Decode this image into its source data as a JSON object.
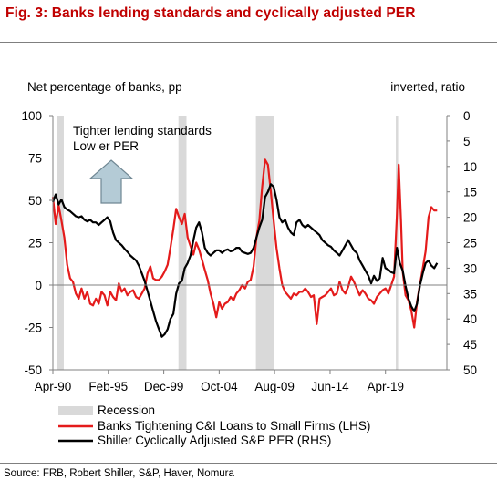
{
  "figure_title": "Fig. 3: Banks lending standards and cyclically adjusted PER",
  "source": "Source: FRB, Robert Shiller, S&P, Haver, Nomura",
  "colors": {
    "title": "#c00000",
    "recession": "#d9d9d9",
    "lending": "#e41b1b",
    "per": "#000000",
    "arrow_fill": "#b4cbd6",
    "arrow_stroke": "#6f8793"
  },
  "chart_data": {
    "type": "line",
    "ylabel_left": "Net percentage of banks, pp",
    "ylabel_right": "inverted, ratio",
    "annotation_lines": [
      "Tighter lending standards",
      "Low er PER"
    ],
    "ylim_left": [
      -50,
      100
    ],
    "ylim_right": [
      50,
      0
    ],
    "right_inverted": true,
    "left_ticks": [
      100,
      75,
      50,
      25,
      0,
      -25,
      -50
    ],
    "left_tick_labels": [
      "100",
      "75",
      "50",
      "25",
      "0",
      "-25",
      "-50"
    ],
    "right_ticks": [
      0,
      5,
      10,
      15,
      20,
      25,
      30,
      35,
      40,
      45,
      50
    ],
    "right_tick_labels": [
      "0",
      "5",
      "10",
      "15",
      "20",
      "25",
      "30",
      "35",
      "40",
      "45",
      "50"
    ],
    "xlim": [
      1990.25,
      2024.6
    ],
    "x_ticks": [
      1990.25,
      1995.08,
      1999.92,
      2004.75,
      2009.58,
      2014.42,
      2019.25
    ],
    "x_tick_labels": [
      "Apr-90",
      "Feb-95",
      "Dec-99",
      "Oct-04",
      "Aug-09",
      "Jun-14",
      "Apr-19"
    ],
    "legend": [
      {
        "key": "recession",
        "label": "Recession"
      },
      {
        "key": "lending",
        "label": "Banks Tightening C&I Loans to Small Firms (LHS)"
      },
      {
        "key": "per",
        "label": "Shiller Cyclically Adjusted S&P PER (RHS)"
      }
    ],
    "recessions": [
      [
        1990.6,
        1991.2
      ],
      [
        2001.2,
        2001.9
      ],
      [
        2007.95,
        2009.5
      ],
      [
        2020.15,
        2020.35
      ]
    ],
    "series": [
      {
        "name": "Banks Tightening C&I Loans to Small Firms (LHS)",
        "axis": "left",
        "points": [
          [
            1990.25,
            52
          ],
          [
            1990.5,
            36
          ],
          [
            1990.75,
            47
          ],
          [
            1991.0,
            38
          ],
          [
            1991.25,
            28
          ],
          [
            1991.5,
            12
          ],
          [
            1991.75,
            4
          ],
          [
            1992.0,
            2
          ],
          [
            1992.25,
            -5
          ],
          [
            1992.5,
            -8
          ],
          [
            1992.75,
            -2
          ],
          [
            1993.0,
            -8
          ],
          [
            1993.25,
            -4
          ],
          [
            1993.5,
            -11
          ],
          [
            1993.75,
            -12
          ],
          [
            1994.0,
            -8
          ],
          [
            1994.25,
            -11
          ],
          [
            1994.5,
            -4
          ],
          [
            1994.75,
            -6
          ],
          [
            1995.0,
            -12
          ],
          [
            1995.25,
            -4
          ],
          [
            1995.5,
            -7
          ],
          [
            1995.75,
            -9
          ],
          [
            1996.0,
            1
          ],
          [
            1996.25,
            -4
          ],
          [
            1996.5,
            -2
          ],
          [
            1996.75,
            -6
          ],
          [
            1997.0,
            -4
          ],
          [
            1997.25,
            -3
          ],
          [
            1997.5,
            -7
          ],
          [
            1997.75,
            -8
          ],
          [
            1998.0,
            -5
          ],
          [
            1998.25,
            -2
          ],
          [
            1998.5,
            7
          ],
          [
            1998.75,
            11
          ],
          [
            1999.0,
            4
          ],
          [
            1999.25,
            3
          ],
          [
            1999.5,
            3
          ],
          [
            1999.75,
            5
          ],
          [
            2000.0,
            8
          ],
          [
            2000.25,
            12
          ],
          [
            2000.5,
            22
          ],
          [
            2000.75,
            33
          ],
          [
            2001.0,
            45
          ],
          [
            2001.25,
            40
          ],
          [
            2001.5,
            36
          ],
          [
            2001.75,
            42
          ],
          [
            2002.0,
            28
          ],
          [
            2002.25,
            23
          ],
          [
            2002.5,
            18
          ],
          [
            2002.75,
            25
          ],
          [
            2003.0,
            21
          ],
          [
            2003.25,
            15
          ],
          [
            2003.5,
            9
          ],
          [
            2003.75,
            3
          ],
          [
            2004.0,
            -5
          ],
          [
            2004.25,
            -11
          ],
          [
            2004.5,
            -19
          ],
          [
            2004.75,
            -10
          ],
          [
            2005.0,
            -14
          ],
          [
            2005.25,
            -11
          ],
          [
            2005.5,
            -10
          ],
          [
            2005.75,
            -7
          ],
          [
            2006.0,
            -9
          ],
          [
            2006.25,
            -5
          ],
          [
            2006.5,
            -3
          ],
          [
            2006.75,
            0
          ],
          [
            2007.0,
            -2
          ],
          [
            2007.25,
            2
          ],
          [
            2007.5,
            3
          ],
          [
            2007.75,
            11
          ],
          [
            2008.0,
            28
          ],
          [
            2008.25,
            38
          ],
          [
            2008.5,
            58
          ],
          [
            2008.75,
            74
          ],
          [
            2009.0,
            71
          ],
          [
            2009.25,
            55
          ],
          [
            2009.5,
            38
          ],
          [
            2009.75,
            22
          ],
          [
            2010.0,
            10
          ],
          [
            2010.25,
            0
          ],
          [
            2010.5,
            -4
          ],
          [
            2010.75,
            -6
          ],
          [
            2011.0,
            -8
          ],
          [
            2011.25,
            -5
          ],
          [
            2011.5,
            -6
          ],
          [
            2011.75,
            -4
          ],
          [
            2012.0,
            -4
          ],
          [
            2012.25,
            -2
          ],
          [
            2012.5,
            -4
          ],
          [
            2012.75,
            -7
          ],
          [
            2013.0,
            -6
          ],
          [
            2013.25,
            -23
          ],
          [
            2013.5,
            -8
          ],
          [
            2013.75,
            -7
          ],
          [
            2014.0,
            -6
          ],
          [
            2014.25,
            -4
          ],
          [
            2014.5,
            -2
          ],
          [
            2014.75,
            -6
          ],
          [
            2015.0,
            -5
          ],
          [
            2015.25,
            2
          ],
          [
            2015.5,
            -3
          ],
          [
            2015.75,
            -5
          ],
          [
            2016.0,
            -1
          ],
          [
            2016.25,
            5
          ],
          [
            2016.5,
            2
          ],
          [
            2016.75,
            -2
          ],
          [
            2017.0,
            -6
          ],
          [
            2017.25,
            -3
          ],
          [
            2017.5,
            -5
          ],
          [
            2017.75,
            -8
          ],
          [
            2018.0,
            -9
          ],
          [
            2018.25,
            -11
          ],
          [
            2018.5,
            -7
          ],
          [
            2018.75,
            -5
          ],
          [
            2019.0,
            -3
          ],
          [
            2019.25,
            -2
          ],
          [
            2019.5,
            -5
          ],
          [
            2019.75,
            0
          ],
          [
            2020.0,
            5
          ],
          [
            2020.25,
            42
          ],
          [
            2020.4,
            71
          ],
          [
            2020.6,
            38
          ],
          [
            2020.75,
            8
          ],
          [
            2021.0,
            -6
          ],
          [
            2021.25,
            -9
          ],
          [
            2021.5,
            -15
          ],
          [
            2021.75,
            -25
          ],
          [
            2022.0,
            -10
          ],
          [
            2022.25,
            0
          ],
          [
            2022.5,
            10
          ],
          [
            2022.75,
            20
          ],
          [
            2023.0,
            40
          ],
          [
            2023.25,
            46
          ],
          [
            2023.5,
            44
          ],
          [
            2023.75,
            44
          ]
        ]
      },
      {
        "name": "Shiller Cyclically Adjusted S&P PER (RHS)",
        "axis": "right",
        "points": [
          [
            1990.25,
            17
          ],
          [
            1990.5,
            15.5
          ],
          [
            1990.75,
            17.5
          ],
          [
            1991.0,
            16.5
          ],
          [
            1991.25,
            18
          ],
          [
            1991.5,
            18.5
          ],
          [
            1991.75,
            18.8
          ],
          [
            1992.0,
            19.3
          ],
          [
            1992.25,
            19.8
          ],
          [
            1992.5,
            20
          ],
          [
            1992.75,
            19.8
          ],
          [
            1993.0,
            20.5
          ],
          [
            1993.25,
            20.8
          ],
          [
            1993.5,
            20.5
          ],
          [
            1993.75,
            21
          ],
          [
            1994.0,
            21
          ],
          [
            1994.25,
            21.5
          ],
          [
            1994.5,
            21
          ],
          [
            1994.75,
            20.5
          ],
          [
            1995.0,
            20
          ],
          [
            1995.25,
            20.8
          ],
          [
            1995.5,
            23
          ],
          [
            1995.75,
            24.5
          ],
          [
            1996.0,
            25
          ],
          [
            1996.25,
            25.5
          ],
          [
            1996.5,
            26.2
          ],
          [
            1996.75,
            26.8
          ],
          [
            1997.0,
            27.5
          ],
          [
            1997.25,
            28
          ],
          [
            1997.5,
            28.5
          ],
          [
            1997.75,
            29.5
          ],
          [
            1998.0,
            31
          ],
          [
            1998.25,
            32.5
          ],
          [
            1998.5,
            34.5
          ],
          [
            1998.75,
            36.5
          ],
          [
            1999.0,
            38.5
          ],
          [
            1999.25,
            40.5
          ],
          [
            1999.5,
            42
          ],
          [
            1999.75,
            43.5
          ],
          [
            2000.0,
            43
          ],
          [
            2000.25,
            42
          ],
          [
            2000.5,
            40
          ],
          [
            2000.75,
            39
          ],
          [
            2001.0,
            35
          ],
          [
            2001.25,
            33
          ],
          [
            2001.5,
            32.5
          ],
          [
            2001.75,
            30
          ],
          [
            2002.0,
            29
          ],
          [
            2002.25,
            27.5
          ],
          [
            2002.5,
            24.5
          ],
          [
            2002.75,
            22
          ],
          [
            2003.0,
            21
          ],
          [
            2003.25,
            23
          ],
          [
            2003.5,
            26
          ],
          [
            2003.75,
            27
          ],
          [
            2004.0,
            27.5
          ],
          [
            2004.25,
            27
          ],
          [
            2004.5,
            26.5
          ],
          [
            2004.75,
            26.5
          ],
          [
            2005.0,
            27
          ],
          [
            2005.25,
            26.5
          ],
          [
            2005.5,
            26.3
          ],
          [
            2005.75,
            26.7
          ],
          [
            2006.0,
            26.5
          ],
          [
            2006.25,
            26
          ],
          [
            2006.5,
            26
          ],
          [
            2006.75,
            26.8
          ],
          [
            2007.0,
            27
          ],
          [
            2007.25,
            27.2
          ],
          [
            2007.5,
            27
          ],
          [
            2007.75,
            26
          ],
          [
            2008.0,
            24
          ],
          [
            2008.25,
            22
          ],
          [
            2008.5,
            20.5
          ],
          [
            2008.75,
            16
          ],
          [
            2009.0,
            15
          ],
          [
            2009.25,
            13.5
          ],
          [
            2009.5,
            14
          ],
          [
            2009.75,
            16.5
          ],
          [
            2010.0,
            20
          ],
          [
            2010.25,
            21
          ],
          [
            2010.5,
            20.5
          ],
          [
            2010.75,
            22
          ],
          [
            2011.0,
            23
          ],
          [
            2011.25,
            23.5
          ],
          [
            2011.5,
            21
          ],
          [
            2011.75,
            20.5
          ],
          [
            2012.0,
            21.5
          ],
          [
            2012.25,
            22
          ],
          [
            2012.5,
            21.5
          ],
          [
            2012.75,
            22
          ],
          [
            2013.0,
            22.5
          ],
          [
            2013.25,
            23
          ],
          [
            2013.5,
            23.5
          ],
          [
            2013.75,
            24.5
          ],
          [
            2014.0,
            25
          ],
          [
            2014.25,
            25.5
          ],
          [
            2014.5,
            25.8
          ],
          [
            2014.75,
            26.5
          ],
          [
            2015.0,
            27
          ],
          [
            2015.25,
            27.5
          ],
          [
            2015.5,
            26.5
          ],
          [
            2015.75,
            25.5
          ],
          [
            2016.0,
            24.5
          ],
          [
            2016.25,
            25.5
          ],
          [
            2016.5,
            26.5
          ],
          [
            2016.75,
            27
          ],
          [
            2017.0,
            28.5
          ],
          [
            2017.25,
            29.5
          ],
          [
            2017.5,
            30.5
          ],
          [
            2017.75,
            31.5
          ],
          [
            2018.0,
            33
          ],
          [
            2018.25,
            31.5
          ],
          [
            2018.5,
            32.5
          ],
          [
            2018.75,
            32
          ],
          [
            2019.0,
            28
          ],
          [
            2019.25,
            30
          ],
          [
            2019.5,
            30.3
          ],
          [
            2019.75,
            30.8
          ],
          [
            2020.0,
            31
          ],
          [
            2020.25,
            26
          ],
          [
            2020.5,
            29
          ],
          [
            2020.75,
            30.5
          ],
          [
            2021.0,
            33.5
          ],
          [
            2021.25,
            36
          ],
          [
            2021.5,
            37.5
          ],
          [
            2021.75,
            38.5
          ],
          [
            2022.0,
            37
          ],
          [
            2022.25,
            33.5
          ],
          [
            2022.5,
            31
          ],
          [
            2022.75,
            29
          ],
          [
            2023.0,
            28.5
          ],
          [
            2023.25,
            29.5
          ],
          [
            2023.5,
            30
          ],
          [
            2023.75,
            29
          ]
        ]
      }
    ]
  }
}
